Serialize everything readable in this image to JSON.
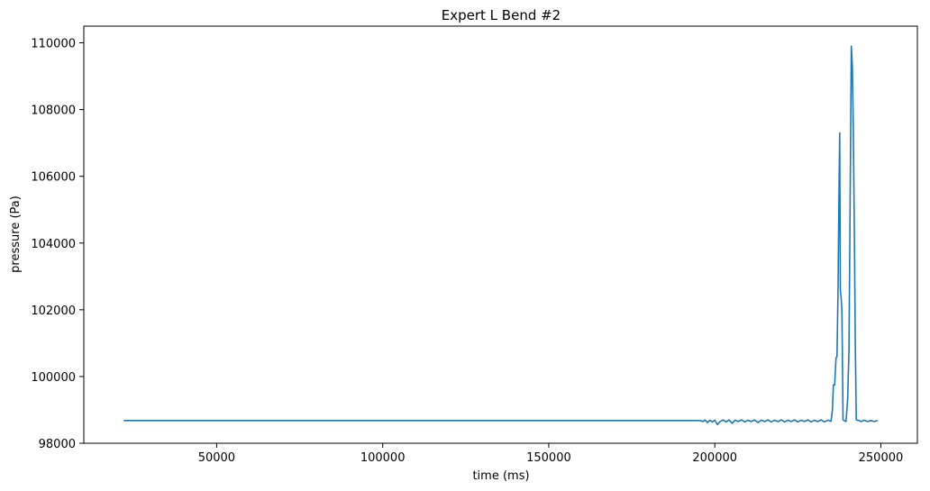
{
  "chart_data": {
    "type": "line",
    "title": "Expert L Bend #2",
    "xlabel": "time (ms)",
    "ylabel": "pressure (Pa)",
    "xlim": [
      10000,
      261000
    ],
    "ylim": [
      98000,
      110500
    ],
    "xticks": [
      50000,
      100000,
      150000,
      200000,
      250000
    ],
    "xtick_labels": [
      "50000",
      "100000",
      "150000",
      "200000",
      "250000"
    ],
    "yticks": [
      98000,
      100000,
      102000,
      104000,
      106000,
      108000,
      110000
    ],
    "ytick_labels": [
      "98000",
      "100000",
      "102000",
      "104000",
      "106000",
      "108000",
      "110000"
    ],
    "grid": false,
    "series": [
      {
        "color": "#1f77b4",
        "points": [
          [
            22000,
            98680
          ],
          [
            195500,
            98680
          ],
          [
            196500,
            98650
          ],
          [
            197000,
            98700
          ],
          [
            197800,
            98620
          ],
          [
            198500,
            98690
          ],
          [
            199200,
            98640
          ],
          [
            200000,
            98690
          ],
          [
            200800,
            98560
          ],
          [
            201600,
            98650
          ],
          [
            202500,
            98700
          ],
          [
            203400,
            98640
          ],
          [
            204300,
            98700
          ],
          [
            205200,
            98600
          ],
          [
            206100,
            98690
          ],
          [
            207000,
            98650
          ],
          [
            208000,
            98700
          ],
          [
            209000,
            98640
          ],
          [
            210000,
            98690
          ],
          [
            211000,
            98650
          ],
          [
            212000,
            98700
          ],
          [
            213000,
            98620
          ],
          [
            214000,
            98690
          ],
          [
            215000,
            98650
          ],
          [
            216000,
            98700
          ],
          [
            217000,
            98640
          ],
          [
            218000,
            98690
          ],
          [
            219000,
            98650
          ],
          [
            220000,
            98700
          ],
          [
            221000,
            98640
          ],
          [
            222000,
            98690
          ],
          [
            223000,
            98650
          ],
          [
            224000,
            98700
          ],
          [
            225000,
            98640
          ],
          [
            226000,
            98690
          ],
          [
            227000,
            98650
          ],
          [
            228000,
            98700
          ],
          [
            229000,
            98640
          ],
          [
            230000,
            98690
          ],
          [
            231000,
            98650
          ],
          [
            232000,
            98700
          ],
          [
            233000,
            98640
          ],
          [
            234000,
            98690
          ],
          [
            235000,
            98660
          ],
          [
            235400,
            99000
          ],
          [
            235700,
            99750
          ],
          [
            236100,
            99750
          ],
          [
            236500,
            100550
          ],
          [
            236800,
            100600
          ],
          [
            237100,
            102500
          ],
          [
            237400,
            105500
          ],
          [
            237600,
            107300
          ],
          [
            237800,
            102600
          ],
          [
            238100,
            102300
          ],
          [
            238300,
            101900
          ],
          [
            238600,
            98700
          ],
          [
            239500,
            98650
          ],
          [
            240000,
            99300
          ],
          [
            240400,
            100800
          ],
          [
            240800,
            106000
          ],
          [
            241100,
            109900
          ],
          [
            241400,
            109300
          ],
          [
            241700,
            107500
          ],
          [
            242000,
            104500
          ],
          [
            242300,
            101000
          ],
          [
            242600,
            98700
          ],
          [
            243500,
            98680
          ],
          [
            244000,
            98650
          ],
          [
            245000,
            98690
          ],
          [
            246000,
            98650
          ],
          [
            247000,
            98680
          ],
          [
            248000,
            98650
          ],
          [
            249000,
            98680
          ]
        ]
      }
    ]
  }
}
